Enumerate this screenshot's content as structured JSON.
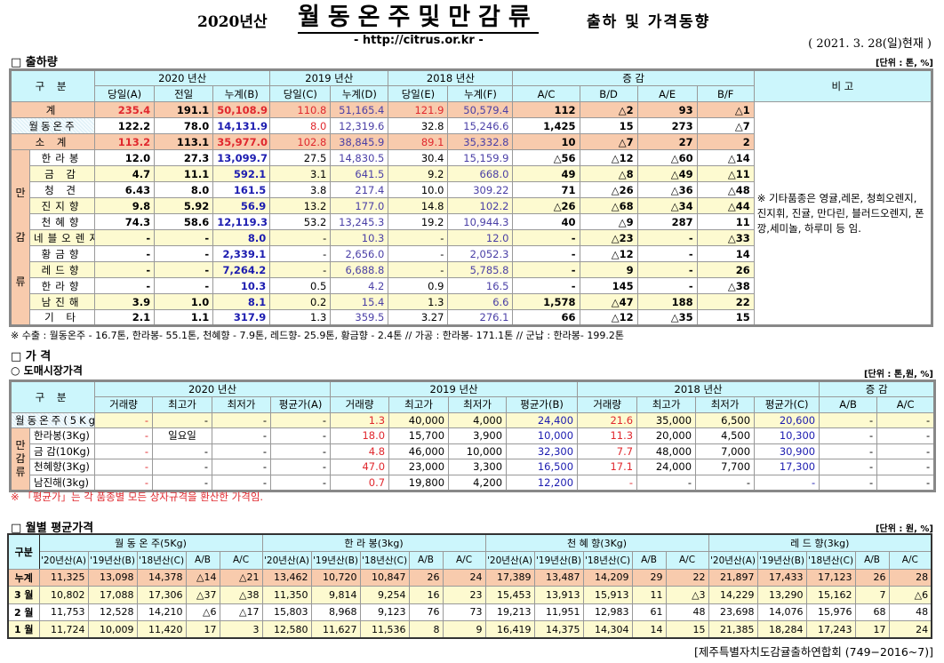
{
  "header": {
    "year": "2020년산",
    "title": "월동온주및만감류",
    "subtitle": "출하 및 가격동향",
    "url": "- http://citrus.or.kr -",
    "date": "( 2021. 3. 28(일)현재 )"
  },
  "colors": {
    "header_bg": "#ccf6fc",
    "total_row": "#f8cbad",
    "alt_row": "#fdfad0",
    "red": "#e0282e",
    "blue": "#1c1cb0"
  },
  "shipment": {
    "section": "□ 출하량",
    "unit": "[단위 : 톤, %]",
    "category": "구    분",
    "remark_header": "비 고",
    "groups": [
      "2020 년산",
      "2019 년산",
      "2018 년산",
      "증        감"
    ],
    "columns": [
      "당일(A)",
      "전일",
      "누계(B)",
      "당일(C)",
      "누계(D)",
      "당일(E)",
      "누계(F)",
      "A/C",
      "B/D",
      "A/E",
      "B/F"
    ],
    "vertical_label": "만 감 류",
    "remark": "※ 기타품종은 영귤,레몬, 청희오렌지, 진지휘, 진귤, 만다린, 블러드오렌지, 폰깡,세미놀, 하루미 등 임.",
    "rows": [
      {
        "label": "계",
        "values": [
          "235.4",
          "191.1",
          "50,108.9",
          "110.8",
          "51,165.4",
          "121.9",
          "50,579.4",
          "112",
          "△2",
          "93",
          "△1"
        ]
      },
      {
        "label": "월동온주",
        "values": [
          "122.2",
          "78.0",
          "14,131.9",
          "8.0",
          "12,319.6",
          "32.8",
          "15,246.6",
          "1,425",
          "15",
          "273",
          "△7"
        ]
      },
      {
        "label": "소  계",
        "values": [
          "113.2",
          "113.1",
          "35,977.0",
          "102.8",
          "38,845.9",
          "89.1",
          "35,332.8",
          "10",
          "△7",
          "27",
          "2"
        ]
      },
      {
        "label": "한라봉",
        "values": [
          "12.0",
          "27.3",
          "13,099.7",
          "27.5",
          "14,830.5",
          "30.4",
          "15,159.9",
          "△56",
          "△12",
          "△60",
          "△14"
        ]
      },
      {
        "label": "금  감",
        "values": [
          "4.7",
          "11.1",
          "592.1",
          "3.1",
          "641.5",
          "9.2",
          "668.0",
          "49",
          "△8",
          "△49",
          "△11"
        ]
      },
      {
        "label": "청  견",
        "values": [
          "6.43",
          "8.0",
          "161.5",
          "3.8",
          "217.4",
          "10.0",
          "309.22",
          "71",
          "△26",
          "△36",
          "△48"
        ]
      },
      {
        "label": "진지향",
        "values": [
          "9.8",
          "5.92",
          "56.9",
          "13.2",
          "177.0",
          "14.8",
          "102.2",
          "△26",
          "△68",
          "△34",
          "△44"
        ]
      },
      {
        "label": "천혜향",
        "values": [
          "74.3",
          "58.6",
          "12,119.3",
          "53.2",
          "13,245.3",
          "19.2",
          "10,944.3",
          "40",
          "△9",
          "287",
          "11"
        ]
      },
      {
        "label": "네블오렌지",
        "values": [
          "-",
          "-",
          "8.0",
          "-",
          "10.3",
          "-",
          "12.0",
          "-",
          "△23",
          "-",
          "△33"
        ]
      },
      {
        "label": "황금향",
        "values": [
          "-",
          "-",
          "2,339.1",
          "-",
          "2,656.0",
          "-",
          "2,052.3",
          "-",
          "△12",
          "-",
          "14"
        ]
      },
      {
        "label": "레드향",
        "values": [
          "-",
          "-",
          "7,264.2",
          "-",
          "6,688.8",
          "-",
          "5,785.8",
          "-",
          "9",
          "-",
          "26"
        ]
      },
      {
        "label": "한라향",
        "values": [
          "-",
          "-",
          "10.3",
          "0.5",
          "4.2",
          "0.9",
          "16.5",
          "-",
          "145",
          "-",
          "△38"
        ]
      },
      {
        "label": "남진해",
        "values": [
          "3.9",
          "1.0",
          "8.1",
          "0.2",
          "15.4",
          "1.3",
          "6.6",
          "1,578",
          "△47",
          "188",
          "22"
        ]
      },
      {
        "label": "기  타",
        "values": [
          "2.1",
          "1.1",
          "317.9",
          "1.3",
          "359.5",
          "3.27",
          "276.1",
          "66",
          "△12",
          "△35",
          "15"
        ]
      }
    ],
    "footnote": "※ 수출 : 월동온주 - 16.7톤, 한라봉- 55.1톤, 천혜향 - 7.9톤, 레드향- 25.9톤, 황금향 - 2.4톤  // 가공 : 한라봉- 171.1톤 // 군납 : 한라봉- 199.2톤"
  },
  "price": {
    "section": "□ 가      격",
    "subsection": "○ 도매시장가격",
    "unit": "[단위 : 톤,원, %]",
    "category": "구    분",
    "groups": [
      "2020 년산",
      "2019 년산",
      "2018 년산",
      "증    감"
    ],
    "columns": [
      "거래량",
      "최고가",
      "최저가",
      "평균가(A)",
      "거래량",
      "최고가",
      "최저가",
      "평균가(B)",
      "거래량",
      "최고가",
      "최저가",
      "평균가(C)",
      "A/B",
      "A/C"
    ],
    "vertical_label": "만 감 류",
    "rows": [
      {
        "label": "월동온주(5Kg)",
        "values": [
          "-",
          "-",
          "-",
          "-",
          "1.3",
          "40,000",
          "4,000",
          "24,400",
          "21.6",
          "35,000",
          "6,500",
          "20,600",
          "-",
          "-"
        ]
      },
      {
        "label": "한라봉(3Kg)",
        "values": [
          "-",
          "일요일",
          "-",
          "-",
          "18.0",
          "15,700",
          "3,900",
          "10,000",
          "11.3",
          "20,000",
          "4,500",
          "10,300",
          "-",
          "-"
        ]
      },
      {
        "label": "금 감(10Kg)",
        "values": [
          "-",
          "-",
          "-",
          "-",
          "4.8",
          "46,000",
          "10,000",
          "32,300",
          "7.7",
          "48,000",
          "7,000",
          "30,900",
          "-",
          "-"
        ]
      },
      {
        "label": "천혜향(3Kg)",
        "values": [
          "-",
          "-",
          "-",
          "-",
          "47.0",
          "23,000",
          "3,300",
          "16,500",
          "17.1",
          "24,000",
          "7,700",
          "17,300",
          "-",
          "-"
        ]
      },
      {
        "label": "남진해(3kg)",
        "values": [
          "-",
          "-",
          "-",
          "-",
          "0.7",
          "19,800",
          "4,200",
          "12,200",
          "-",
          "-",
          "-",
          "-",
          "-",
          "-"
        ]
      }
    ],
    "note": "※ 「평균가」는 각 품종별 모든 상자규격을 환산한 가격임."
  },
  "monthly": {
    "section": "□ 월별 평균가격",
    "unit": "[단위 : 원, %]",
    "category": "구분",
    "groups": [
      "월 동 온 주(5Kg)",
      "한 라 봉(3kg)",
      "천 혜 향(3Kg)",
      "레 드 향(3kg)"
    ],
    "columns": [
      "'20년산(A)",
      "'19년산(B)",
      "'18년산(C)",
      "A/B",
      "A/C"
    ],
    "rows": [
      {
        "label": "누계",
        "values": [
          "11,325",
          "13,098",
          "14,378",
          "△14",
          "△21",
          "13,462",
          "10,720",
          "10,847",
          "26",
          "24",
          "17,389",
          "13,487",
          "14,209",
          "29",
          "22",
          "21,897",
          "17,433",
          "17,123",
          "26",
          "28"
        ]
      },
      {
        "label": "3 월",
        "values": [
          "10,802",
          "17,088",
          "17,306",
          "△37",
          "△38",
          "11,350",
          "9,814",
          "9,254",
          "16",
          "23",
          "15,453",
          "13,913",
          "15,913",
          "11",
          "△3",
          "14,229",
          "13,290",
          "15,162",
          "7",
          "△6"
        ]
      },
      {
        "label": "2 월",
        "values": [
          "11,753",
          "12,528",
          "14,210",
          "△6",
          "△17",
          "15,803",
          "8,968",
          "9,123",
          "76",
          "73",
          "19,213",
          "11,951",
          "12,983",
          "61",
          "48",
          "23,698",
          "14,076",
          "15,976",
          "68",
          "48"
        ]
      },
      {
        "label": "1 월",
        "values": [
          "11,724",
          "10,009",
          "11,420",
          "17",
          "3",
          "12,580",
          "11,627",
          "11,536",
          "8",
          "9",
          "16,419",
          "14,375",
          "14,304",
          "14",
          "15",
          "21,385",
          "18,284",
          "17,243",
          "17",
          "24"
        ]
      }
    ],
    "source": "[제주특별자치도감귤출하연합회 (749−2016~7)]"
  }
}
